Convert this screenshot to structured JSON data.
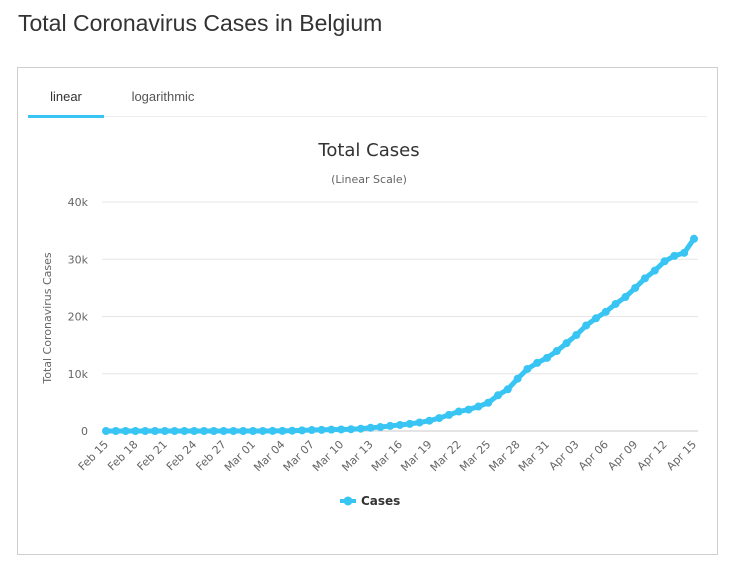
{
  "page": {
    "title": "Total Coronavirus Cases in Belgium"
  },
  "tabs": [
    {
      "label": "linear",
      "active": true
    },
    {
      "label": "logarithmic",
      "active": false
    }
  ],
  "chart_data": {
    "type": "line",
    "title": "Total Cases",
    "subtitle": "(Linear Scale)",
    "ylabel": "Total Coronavirus Cases",
    "xlabel": "",
    "ylim": [
      0,
      40000
    ],
    "yticks": [
      0,
      10000,
      20000,
      30000,
      40000
    ],
    "ytick_labels": [
      "0",
      "10k",
      "20k",
      "30k",
      "40k"
    ],
    "xtick_labels": [
      "Feb 15",
      "Feb 18",
      "Feb 21",
      "Feb 24",
      "Feb 27",
      "Mar 01",
      "Mar 04",
      "Mar 07",
      "Mar 10",
      "Mar 13",
      "Mar 16",
      "Mar 19",
      "Mar 22",
      "Mar 25",
      "Mar 28",
      "Mar 31",
      "Apr 03",
      "Apr 06",
      "Apr 09",
      "Apr 12",
      "Apr 15"
    ],
    "grid": true,
    "legend": "bottom-center",
    "color": "#39c5f3",
    "x": [
      "Feb 15",
      "Feb 16",
      "Feb 17",
      "Feb 18",
      "Feb 19",
      "Feb 20",
      "Feb 21",
      "Feb 22",
      "Feb 23",
      "Feb 24",
      "Feb 25",
      "Feb 26",
      "Feb 27",
      "Feb 28",
      "Feb 29",
      "Mar 01",
      "Mar 02",
      "Mar 03",
      "Mar 04",
      "Mar 05",
      "Mar 06",
      "Mar 07",
      "Mar 08",
      "Mar 09",
      "Mar 10",
      "Mar 11",
      "Mar 12",
      "Mar 13",
      "Mar 14",
      "Mar 15",
      "Mar 16",
      "Mar 17",
      "Mar 18",
      "Mar 19",
      "Mar 20",
      "Mar 21",
      "Mar 22",
      "Mar 23",
      "Mar 24",
      "Mar 25",
      "Mar 26",
      "Mar 27",
      "Mar 28",
      "Mar 29",
      "Mar 30",
      "Mar 31",
      "Apr 01",
      "Apr 02",
      "Apr 03",
      "Apr 04",
      "Apr 05",
      "Apr 06",
      "Apr 07",
      "Apr 08",
      "Apr 09",
      "Apr 10",
      "Apr 11",
      "Apr 12",
      "Apr 13",
      "Apr 14",
      "Apr 15"
    ],
    "series": [
      {
        "name": "Cases",
        "values": [
          1,
          1,
          1,
          1,
          1,
          1,
          1,
          1,
          1,
          1,
          1,
          1,
          1,
          1,
          1,
          2,
          8,
          13,
          23,
          50,
          109,
          169,
          200,
          239,
          267,
          314,
          399,
          559,
          689,
          886,
          1058,
          1243,
          1486,
          1795,
          2257,
          2815,
          3401,
          3743,
          4269,
          4937,
          6235,
          7284,
          9134,
          10836,
          11899,
          12775,
          13964,
          15348,
          16770,
          18431,
          19691,
          20814,
          22194,
          23403,
          24983,
          26667,
          28018,
          29647,
          30589,
          31119,
          33573
        ]
      }
    ]
  }
}
